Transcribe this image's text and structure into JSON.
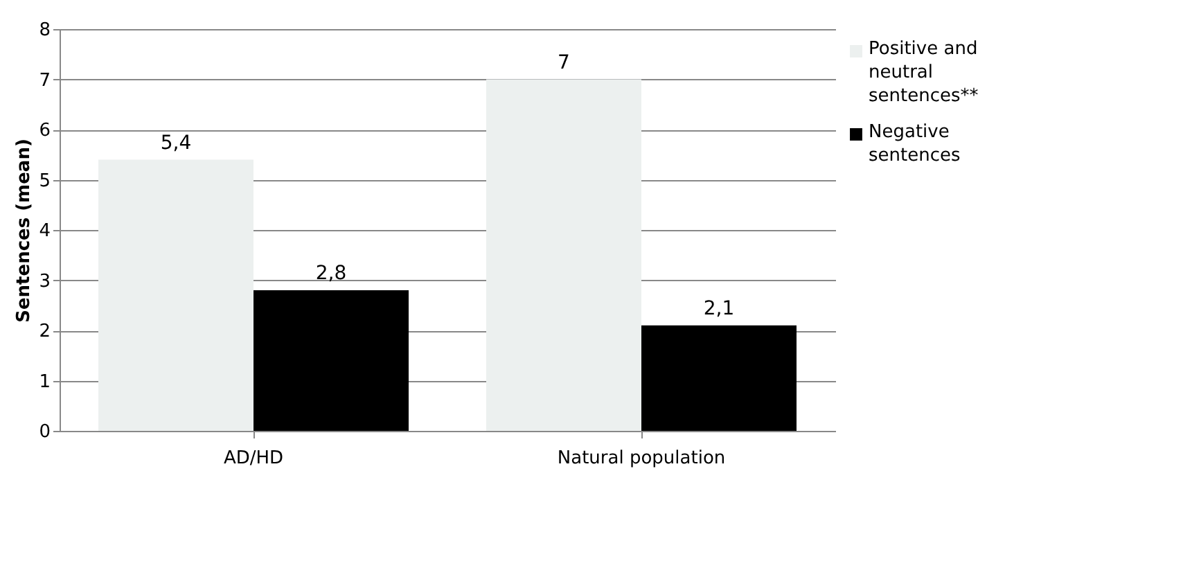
{
  "chart_data": {
    "type": "bar",
    "ylabel": "Sentences (mean)",
    "categories": [
      "AD/HD",
      "Natural population"
    ],
    "series": [
      {
        "name": "Positive and neutral sentences**",
        "color": "#ecf0ef",
        "values": [
          5.4,
          7
        ],
        "value_labels": [
          "5,4",
          "7"
        ]
      },
      {
        "name": "Negative sentences",
        "color": "#000000",
        "values": [
          2.8,
          2.1
        ],
        "value_labels": [
          "2,8",
          "2,1"
        ]
      }
    ],
    "ylim": [
      0,
      8
    ],
    "yticks": [
      0,
      1,
      2,
      3,
      4,
      5,
      6,
      7,
      8
    ],
    "grid": "y",
    "legend": "right"
  }
}
